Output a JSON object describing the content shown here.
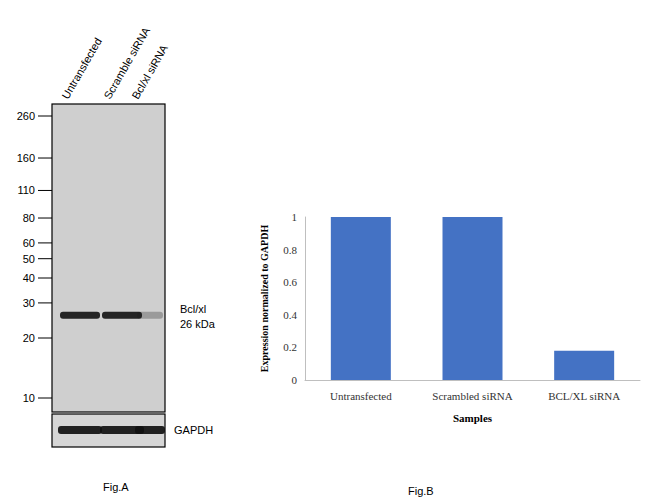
{
  "chart_data": {
    "type": "bar",
    "caption": "Fig.B",
    "x_label": "Samples",
    "y_label": "Expression normalized to GAPDH",
    "categories": [
      "Untransfected",
      "Scrambled siRNA",
      "BCL/XL siRNA"
    ],
    "values": [
      1.0,
      1.0,
      0.18
    ],
    "color": "#4472c4",
    "ylim": [
      0,
      1
    ],
    "yticks": [
      0,
      0.2,
      0.4,
      0.6,
      0.8,
      1
    ],
    "grid": false
  },
  "blot": {
    "caption": "Fig.A",
    "lanes": [
      "Untransfected",
      "Scramble siRNA",
      "Bcl/xl siRNA"
    ],
    "markers": [
      260,
      160,
      110,
      80,
      60,
      50,
      40,
      30,
      20,
      10
    ],
    "band_name": "Bcl/xl",
    "band_kda": 26,
    "band_size_label": "26 kDa",
    "loading_control": "GAPDH"
  }
}
